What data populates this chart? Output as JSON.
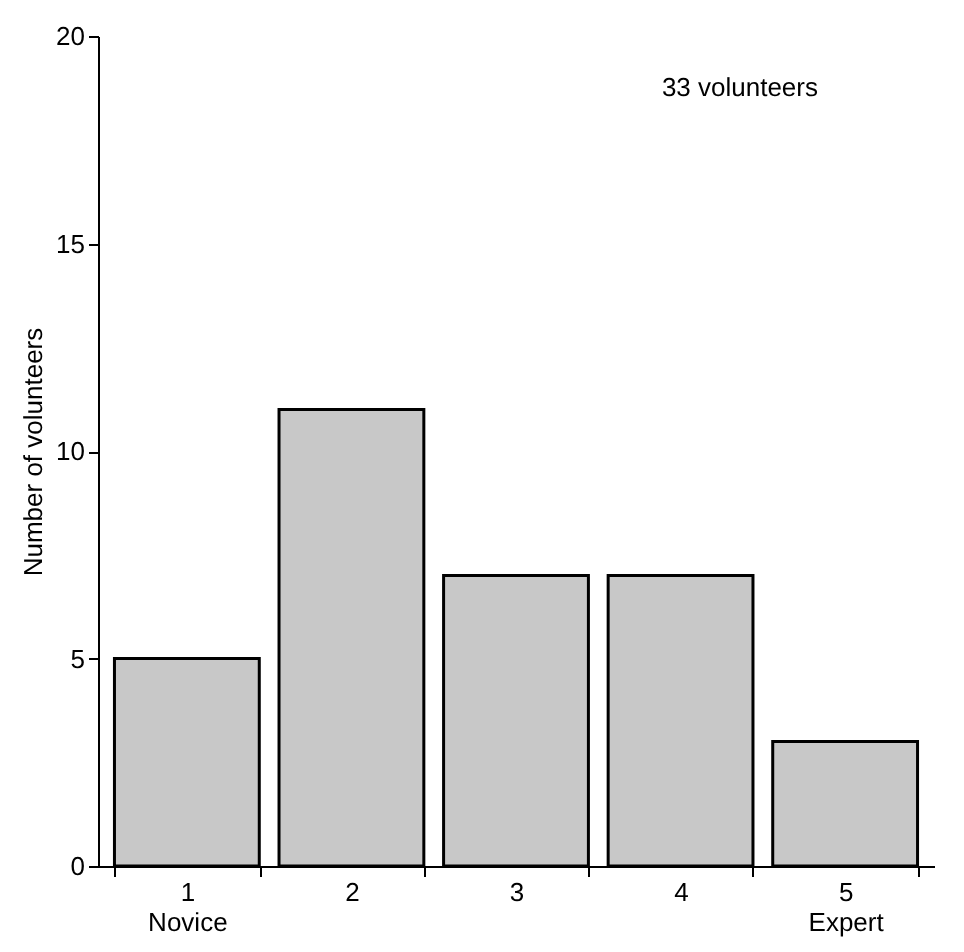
{
  "chart_data": {
    "type": "bar",
    "ylabel": "Number of volunteers",
    "categories": [
      "1\nNovice",
      "2",
      "3",
      "4",
      "5\nExpert"
    ],
    "values": [
      5,
      11,
      7,
      7,
      3
    ],
    "color": "#c8c8c8",
    "ylim": [
      0,
      20
    ],
    "yticks": [
      0,
      5,
      10,
      15,
      20
    ],
    "grid": false,
    "annotations": [
      "33 volunteers"
    ]
  }
}
